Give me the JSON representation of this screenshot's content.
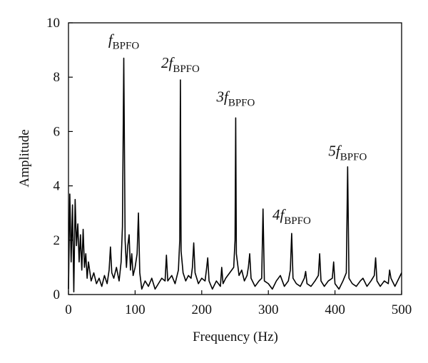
{
  "chart_data": {
    "type": "line",
    "xlabel": "Frequency (Hz)",
    "ylabel": "Amplitude",
    "xlim": [
      0,
      500
    ],
    "xticks": [
      0,
      100,
      200,
      300,
      400,
      500
    ],
    "ylim": [
      0,
      10
    ],
    "yticks": [
      0,
      2,
      4,
      6,
      8,
      10
    ],
    "color": "#000000",
    "x": [
      0,
      2,
      4,
      6,
      8,
      10,
      12,
      14,
      16,
      18,
      20,
      22,
      24,
      26,
      28,
      30,
      34,
      38,
      42,
      46,
      50,
      54,
      58,
      61,
      63,
      65,
      68,
      72,
      76,
      79,
      81,
      83,
      85,
      87,
      89,
      91,
      93,
      95,
      97,
      100,
      103,
      105,
      107,
      110,
      115,
      120,
      125,
      130,
      135,
      140,
      145,
      147,
      149,
      155,
      160,
      165,
      167,
      168,
      169,
      172,
      176,
      180,
      184,
      186,
      188,
      190,
      195,
      200,
      205,
      207,
      209,
      211,
      216,
      222,
      228,
      230,
      232,
      236,
      242,
      248,
      250,
      251,
      252,
      256,
      260,
      264,
      268,
      270,
      272,
      274,
      280,
      286,
      290,
      292,
      294,
      300,
      306,
      312,
      318,
      324,
      330,
      333,
      335,
      337,
      342,
      348,
      354,
      356,
      358,
      364,
      370,
      375,
      377,
      379,
      384,
      390,
      396,
      398,
      400,
      406,
      412,
      417,
      419,
      421,
      426,
      432,
      438,
      442,
      448,
      454,
      459,
      461,
      463,
      468,
      474,
      480,
      482,
      484,
      490,
      496,
      500
    ],
    "values": [
      0.2,
      3.7,
      1.2,
      3.3,
      0.1,
      3.5,
      1.8,
      2.6,
      1.2,
      2.2,
      0.9,
      2.4,
      1.0,
      1.5,
      0.6,
      1.2,
      0.5,
      0.8,
      0.4,
      0.6,
      0.3,
      0.7,
      0.4,
      0.9,
      1.75,
      0.8,
      0.6,
      1.0,
      0.5,
      1.2,
      2.5,
      8.7,
      2.0,
      1.0,
      1.8,
      2.2,
      0.9,
      1.5,
      0.7,
      1.0,
      1.5,
      3.0,
      0.8,
      0.2,
      0.5,
      0.3,
      0.6,
      0.2,
      0.4,
      0.6,
      0.5,
      1.45,
      0.5,
      0.7,
      0.4,
      0.9,
      2.0,
      7.9,
      1.6,
      0.8,
      0.5,
      0.7,
      0.6,
      1.0,
      1.9,
      0.8,
      0.4,
      0.6,
      0.5,
      0.9,
      1.35,
      0.5,
      0.2,
      0.5,
      0.3,
      1.0,
      0.4,
      0.6,
      0.8,
      1.0,
      2.0,
      6.5,
      1.5,
      0.7,
      0.9,
      0.5,
      0.7,
      1.0,
      1.5,
      0.6,
      0.3,
      0.5,
      0.6,
      3.15,
      0.5,
      0.4,
      0.2,
      0.5,
      0.7,
      0.3,
      0.5,
      0.9,
      2.25,
      0.6,
      0.4,
      0.3,
      0.6,
      0.85,
      0.4,
      0.3,
      0.5,
      0.7,
      1.5,
      0.5,
      0.3,
      0.5,
      0.6,
      1.2,
      0.4,
      0.2,
      0.5,
      0.8,
      4.7,
      0.6,
      0.4,
      0.3,
      0.5,
      0.6,
      0.3,
      0.5,
      0.7,
      1.35,
      0.5,
      0.3,
      0.5,
      0.4,
      0.9,
      0.6,
      0.3,
      0.6,
      0.8
    ],
    "annotations": [
      {
        "label": "f",
        "subscript": "BPFO",
        "x": 83,
        "y": 9.2
      },
      {
        "label": "2f",
        "subscript": "BPFO",
        "x": 168,
        "y": 8.35
      },
      {
        "label": "3f",
        "subscript": "BPFO",
        "x": 251,
        "y": 7.1
      },
      {
        "label": "4f",
        "subscript": "BPFO",
        "x": 335,
        "y": 2.75
      },
      {
        "label": "5f",
        "subscript": "BPFO",
        "x": 419,
        "y": 5.1
      }
    ]
  }
}
